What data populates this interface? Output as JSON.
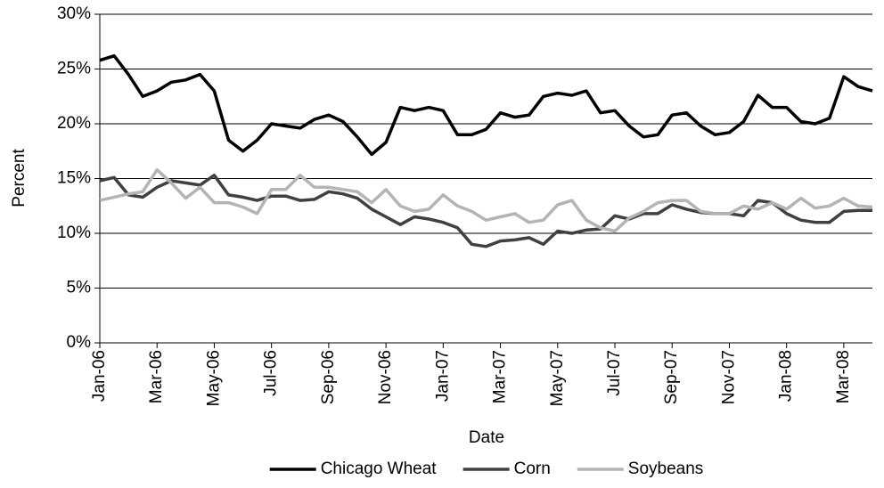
{
  "chart_data": {
    "type": "line",
    "x_label": "Date",
    "y_label": "Percent",
    "categories": [
      "Jan-06",
      null,
      null,
      null,
      "Mar-06",
      null,
      null,
      null,
      "May-06",
      null,
      null,
      null,
      "Jul-06",
      null,
      null,
      null,
      "Sep-06",
      null,
      null,
      null,
      "Nov-06",
      null,
      null,
      null,
      "Jan-07",
      null,
      null,
      null,
      "Mar-07",
      null,
      null,
      null,
      "May-07",
      null,
      null,
      null,
      "Jul-07",
      null,
      null,
      null,
      "Sep-07",
      null,
      null,
      null,
      "Nov-07",
      null,
      null,
      null,
      "Jan-08",
      null,
      null,
      null,
      "Mar-08",
      null,
      null
    ],
    "series": [
      {
        "name": "Chicago Wheat",
        "color": "#000000",
        "values": [
          25.8,
          26.2,
          24.5,
          22.5,
          23.0,
          23.8,
          24.0,
          24.5,
          23.0,
          18.5,
          17.5,
          18.5,
          20.0,
          19.8,
          19.6,
          20.4,
          20.8,
          20.2,
          18.8,
          17.2,
          18.3,
          21.5,
          21.2,
          21.5,
          21.2,
          19.0,
          19.0,
          19.5,
          21.0,
          20.6,
          20.8,
          22.5,
          22.8,
          22.6,
          23.0,
          21.0,
          21.2,
          19.8,
          18.8,
          19.0,
          20.8,
          21.0,
          19.8,
          19.0,
          19.2,
          20.2,
          22.6,
          21.5,
          21.5,
          20.2,
          20.0,
          20.5,
          24.3,
          23.4,
          23.0
        ]
      },
      {
        "name": "Corn",
        "color": "#404040",
        "values": [
          14.8,
          15.1,
          13.5,
          13.3,
          14.2,
          14.8,
          14.6,
          14.4,
          15.3,
          13.5,
          13.3,
          13.0,
          13.4,
          13.4,
          13.0,
          13.1,
          13.8,
          13.6,
          13.2,
          12.2,
          11.5,
          10.8,
          11.5,
          11.3,
          11.0,
          10.5,
          9.0,
          8.8,
          9.3,
          9.4,
          9.6,
          9.0,
          10.2,
          10.0,
          10.3,
          10.4,
          11.6,
          11.3,
          11.8,
          11.8,
          12.6,
          12.2,
          11.9,
          11.8,
          11.8,
          11.6,
          13.0,
          12.8,
          11.8,
          11.2,
          11.0,
          11.0,
          12.0,
          12.1,
          12.1
        ]
      },
      {
        "name": "Soybeans",
        "color": "#b4b4b4",
        "values": [
          13.0,
          13.3,
          13.6,
          13.8,
          15.8,
          14.6,
          13.2,
          14.2,
          12.8,
          12.8,
          12.4,
          11.8,
          14.0,
          14.0,
          15.3,
          14.2,
          14.2,
          14.0,
          13.8,
          12.8,
          14.0,
          12.5,
          12.0,
          12.2,
          13.5,
          12.5,
          12.0,
          11.2,
          11.5,
          11.8,
          11.0,
          11.2,
          12.6,
          13.0,
          11.2,
          10.5,
          10.2,
          11.4,
          12.0,
          12.8,
          13.0,
          13.0,
          12.0,
          11.8,
          11.8,
          12.5,
          12.2,
          12.8,
          12.2,
          13.2,
          12.3,
          12.5,
          13.2,
          12.5,
          12.4
        ]
      }
    ],
    "ylim": [
      0,
      30
    ],
    "yticks": [
      {
        "value": 0,
        "label": "0%"
      },
      {
        "value": 5,
        "label": "5%"
      },
      {
        "value": 10,
        "label": "10%"
      },
      {
        "value": 15,
        "label": "15%"
      },
      {
        "value": 20,
        "label": "20%"
      },
      {
        "value": 25,
        "label": "25%"
      },
      {
        "value": 30,
        "label": "30%"
      }
    ],
    "grid": true,
    "legend": "bottom"
  }
}
